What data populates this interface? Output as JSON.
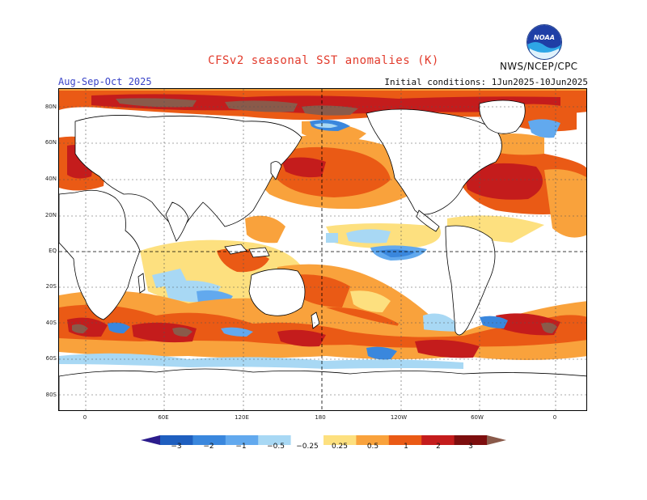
{
  "title": "CFSv2 seasonal SST anomalies (K)",
  "season": "Aug-Sep-Oct 2025",
  "initial_conditions": "Initial conditions: 1Jun2025-10Jun2025",
  "agency": "NWS/NCEP/CPC",
  "logo": {
    "text": "NOAA",
    "icon": "noaa-logo-icon"
  },
  "lat_labels": [
    "80N",
    "60N",
    "40N",
    "20N",
    "EQ",
    "20S",
    "40S",
    "60S",
    "80S"
  ],
  "lon_labels": [
    "0",
    "60E",
    "120E",
    "180",
    "120W",
    "60W",
    "0"
  ],
  "colorbar": {
    "labels": [
      "−3",
      "−2",
      "−1",
      "−0.5",
      "−0.25",
      "0.25",
      "0.5",
      "1",
      "2",
      "3"
    ],
    "colors": [
      "#2b1c8c",
      "#1f5fbf",
      "#3a87dd",
      "#62a9ee",
      "#a8d8f4",
      "#ffffff",
      "#fde07f",
      "#f9a23c",
      "#ea5a15",
      "#c41c1c",
      "#7d0e0e",
      "#8a5a4a"
    ]
  },
  "colors": {
    "title": "#e23b2c",
    "season": "#3a44c8",
    "land": "#ffffff",
    "coast": "#000000"
  }
}
